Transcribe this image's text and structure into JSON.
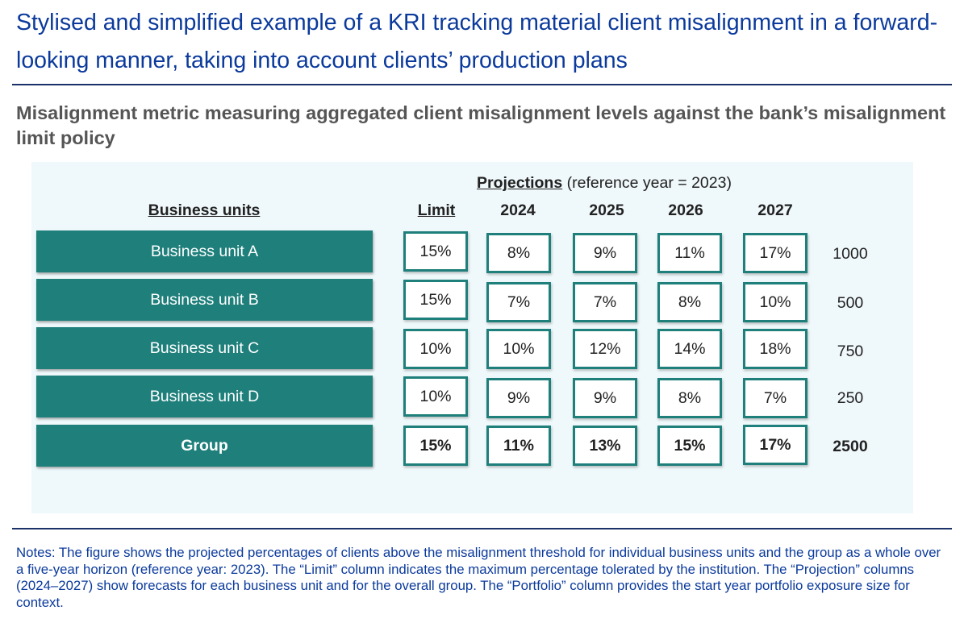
{
  "title": "Stylised and simplified example of a KRI tracking material client misalignment in a forward-looking manner, taking into account clients’ production plans",
  "subtitle": "Misalignment metric measuring aggregated client misalignment levels against the bank’s misalignment limit policy",
  "table": {
    "projections_label": "Projections",
    "projections_note": "(reference year = 2023)",
    "business_units_header": "Business units",
    "limit_header": "Limit",
    "years": [
      "2024",
      "2025",
      "2026",
      "2027"
    ],
    "rows": [
      {
        "unit": "Business unit A",
        "limit": "15%",
        "values": [
          "8%",
          "9%",
          "11%",
          "17%"
        ],
        "portfolio": "1000"
      },
      {
        "unit": "Business unit B",
        "limit": "15%",
        "values": [
          "7%",
          "7%",
          "8%",
          "10%"
        ],
        "portfolio": "500"
      },
      {
        "unit": "Business unit C",
        "limit": "10%",
        "values": [
          "10%",
          "12%",
          "14%",
          "18%"
        ],
        "portfolio": "750"
      },
      {
        "unit": "Business unit D",
        "limit": "10%",
        "values": [
          "9%",
          "9%",
          "8%",
          "7%"
        ],
        "portfolio": "250"
      },
      {
        "unit": "Group",
        "limit": "15%",
        "values": [
          "11%",
          "13%",
          "15%",
          "17%"
        ],
        "portfolio": "2500"
      }
    ]
  },
  "notes": "Notes: The figure shows the projected percentages of clients above the misalignment threshold for individual business units and the group as a whole over a five-year horizon (reference year: 2023). The “Limit” column indicates the maximum percentage tolerated by the institution. The “Projection” columns (2024–2027) show forecasts for each business unit and for the overall group. The “Portfolio” column provides the start year portfolio exposure size for context.",
  "colors": {
    "accent": "#1e7f7b",
    "title": "#0b3a9c",
    "rule": "#1b3269",
    "panel": "#eff8fa"
  }
}
